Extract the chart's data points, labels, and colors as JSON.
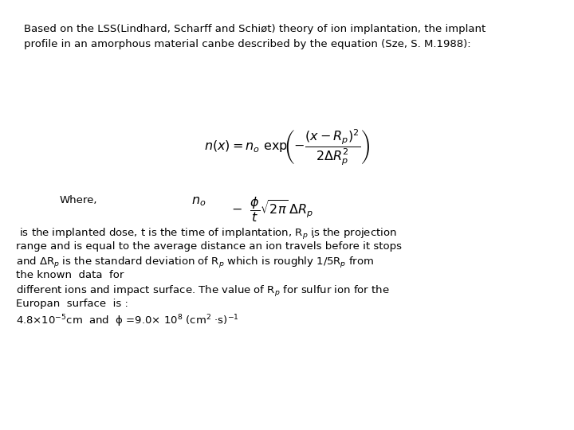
{
  "background_color": "#ffffff",
  "text_color": "#000000",
  "fig_width": 7.2,
  "fig_height": 5.4,
  "dpi": 100,
  "paragraph1": "Based on the LSS(Lindhard, Scharff and Schiøt) theory of ion implantation, the implant\nprofile in an amorphous material canbe described by the equation (Sze, S. M.1988):",
  "equation1": "$n(x) = n_o\\ \\mathrm{exp}\\!\\left(-\\dfrac{(x - R_p)^2}{2\\Delta R_p^2}\\right)$",
  "where_label": "Where,",
  "eq2_no": "$n_o$",
  "eq2_rest": "$-\\ \\ \\dfrac{\\phi}{t}\\sqrt{2\\pi}\\,\\Delta R_p$",
  "comma_note": ",",
  "p2_l1": " is the implanted dose, t is the time of implantation, R$_p$ is the projection",
  "p2_l2": "range and is equal to the average distance an ion travels before it stops",
  "p2_l3": "and ΔR$_p$ is the standard deviation of R$_p$ which is roughly 1/5R$_p$ from",
  "p2_l4": "the known  data  for",
  "p2_l5": "different ions and impact surface. The value of R$_p$ for sulfur ion for the",
  "p2_l6": "Europan  surface  is :",
  "p2_l7": "4.8×10$^{-5}$cm  and  ϕ =9.0× 10$^8$ (cm$^2$ ·s)$^{-1}$"
}
